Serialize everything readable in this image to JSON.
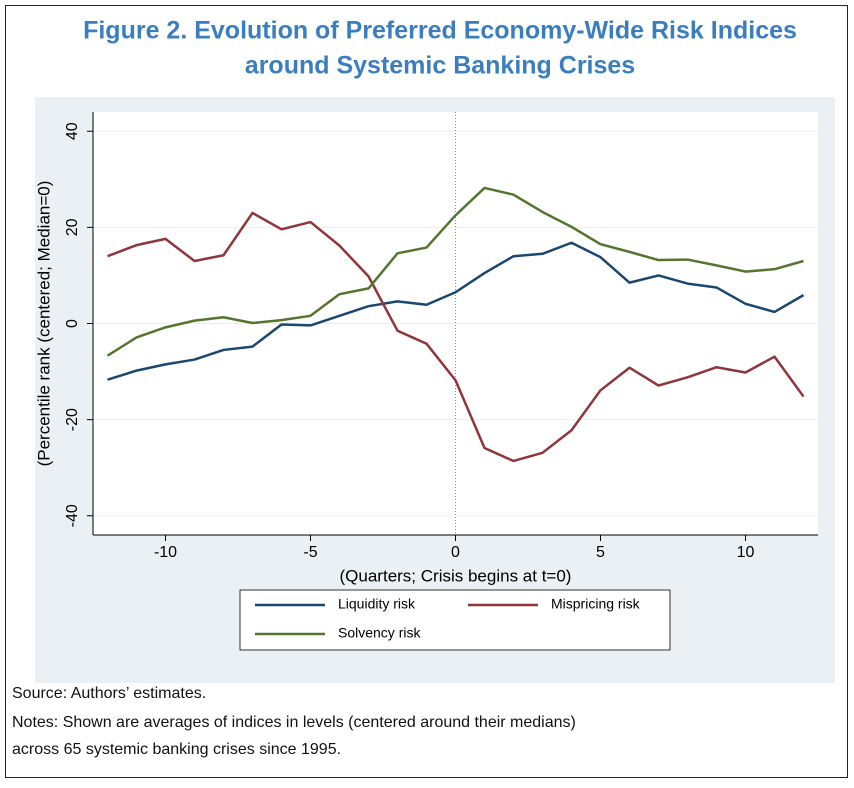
{
  "header": {
    "title_lines": [
      "Figure 2. Evolution of Preferred Economy-Wide Risk Indices",
      "around Systemic Banking Crises"
    ]
  },
  "chart_data": {
    "type": "line",
    "x_label": "(Quarters; Crisis begins at t=0)",
    "y_label": "(Percentile rank (centered; Median=0)",
    "x": [
      -12,
      -11,
      -10,
      -9,
      -8,
      -7,
      -6,
      -5,
      -4,
      -3,
      -2,
      -1,
      0,
      1,
      2,
      3,
      4,
      5,
      6,
      7,
      8,
      9,
      10,
      11,
      12
    ],
    "series": [
      {
        "name": "Liquidity risk",
        "color": "#1a476f",
        "values": [
          -11.7,
          -9.8,
          -8.5,
          -7.5,
          -5.5,
          -4.8,
          -0.2,
          -0.4,
          1.6,
          3.6,
          4.6,
          3.9,
          6.5,
          10.5,
          14,
          14.5,
          16.8,
          13.8,
          8.5,
          10,
          8.3,
          7.5,
          4.1,
          2.4,
          5.9
        ]
      },
      {
        "name": "Mispricing risk",
        "color": "#90353b",
        "values": [
          14,
          16.3,
          17.6,
          13,
          14.2,
          23,
          19.6,
          21.1,
          16.2,
          9.8,
          -1.5,
          -4.2,
          -11.8,
          -25.9,
          -28.6,
          -26.9,
          -22.2,
          -13.9,
          -9.2,
          -12.9,
          -11.2,
          -9.1,
          -10.2,
          -6.9,
          -15.2
        ]
      },
      {
        "name": "Solvency risk",
        "color": "#55752f",
        "values": [
          -6.7,
          -2.9,
          -0.8,
          0.6,
          1.3,
          0.1,
          0.7,
          1.6,
          6.1,
          7.3,
          14.6,
          15.8,
          22.5,
          28.2,
          26.8,
          23.2,
          20.1,
          16.5,
          14.9,
          13.2,
          13.3,
          12.1,
          10.8,
          11.3,
          13
        ]
      }
    ],
    "xlim": [
      -12.5,
      12.5
    ],
    "xticks": [
      -10,
      -5,
      0,
      5,
      10
    ],
    "ylim": [
      -44,
      44
    ],
    "yticks": [
      -40,
      -20,
      0,
      20,
      40
    ],
    "grid": true,
    "vline": 0,
    "legend_position": "bottom"
  },
  "footer": {
    "source": "Source: Authors’ estimates.",
    "notes": [
      "Notes: Shown are averages of indices in levels (centered around their medians)",
      "across 65 systemic banking crises since 1995."
    ]
  }
}
